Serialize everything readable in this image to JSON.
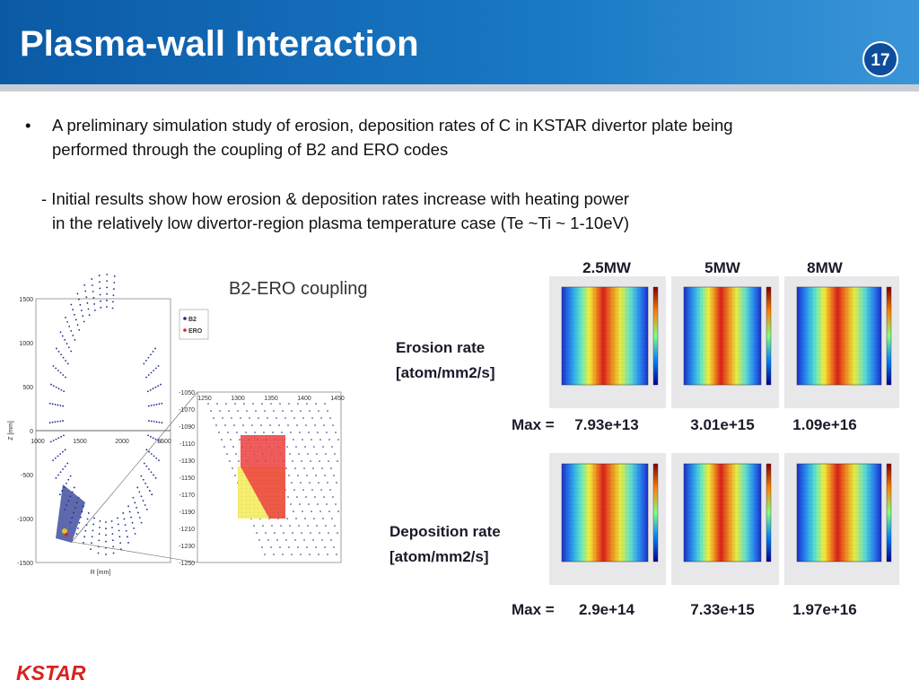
{
  "header": {
    "title": "Plasma-wall Interaction",
    "page_number": "17"
  },
  "body": {
    "bullet": "•",
    "bullet_lines": [
      "A preliminary simulation study of erosion, deposition rates  of C in KSTAR divertor plate being",
      "performed through the coupling of B2 and ERO codes"
    ],
    "sub_lines": [
      "- Initial results show how erosion & deposition rates increase with heating power",
      "in the relatively low divertor-region plasma temperature case (Te ~Ti ~ 1-10eV)"
    ]
  },
  "figure_left": {
    "title": "B2-ERO coupling",
    "legend": [
      "B2",
      "ERO"
    ],
    "x_label": "R [mm]",
    "y_label": "Z [mm]",
    "yticks": [
      "1500",
      "1000",
      "500",
      "0",
      "-500",
      "-1000",
      "-1500"
    ],
    "xticks": [
      "1000",
      "1500",
      "2000",
      "2500"
    ],
    "zoom_xticks": [
      "1250",
      "1300",
      "1350",
      "1400",
      "1450"
    ],
    "zoom_yticks": [
      "-1050",
      "-1070",
      "-1090",
      "-1110",
      "-1130",
      "-1150",
      "-1170",
      "-1190",
      "-1210",
      "-1230",
      "-1250"
    ]
  },
  "figure_right": {
    "columns": [
      "2.5MW",
      "5MW",
      "8MW"
    ],
    "rows": [
      {
        "label_lines": [
          "Erosion rate",
          "[atom/mm2/s]"
        ],
        "max_label": "Max =",
        "max_values": [
          "7.93e+13",
          "3.01e+15",
          "1.09e+16"
        ]
      },
      {
        "label_lines": [
          "Deposition rate",
          "[atom/mm2/s]"
        ],
        "max_label": "Max =",
        "max_values": [
          "2.9e+14",
          "7.33e+15",
          "1.97e+16"
        ]
      }
    ]
  },
  "footer": {
    "logo": "KSTAR"
  }
}
